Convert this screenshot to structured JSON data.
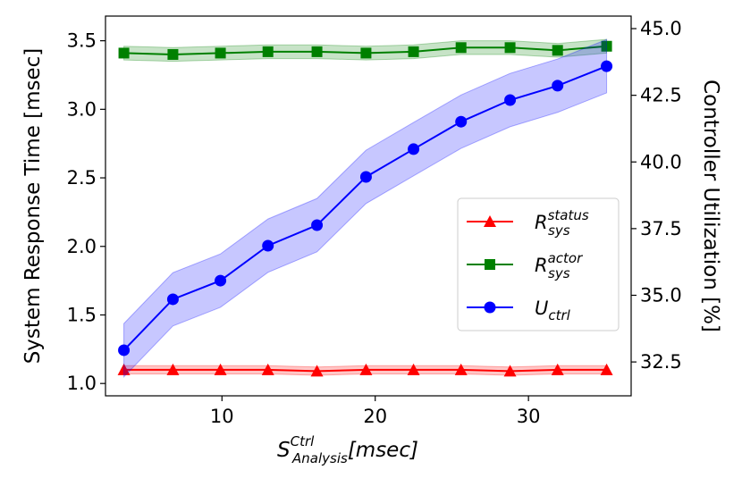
{
  "chart_data": {
    "type": "line",
    "y_label": "System Response Time [msec]",
    "y2_label": "Controller Utilization [%]",
    "x_label": {
      "symbol": "S",
      "subscript": "Analysis",
      "superscript": "Ctrl",
      "unit": "[msec]"
    },
    "x": [
      3.6,
      6.8,
      9.9,
      13.0,
      16.2,
      19.4,
      22.5,
      25.6,
      28.8,
      31.9,
      35.1
    ],
    "xlim": [
      2.4,
      36.7
    ],
    "xticks": [
      10,
      20,
      30
    ],
    "ylim": [
      0.91,
      3.68
    ],
    "yticks": [
      {
        "value": 1,
        "label": "1.0"
      },
      1.5,
      {
        "value": 2,
        "label": "2.0"
      },
      2.5,
      {
        "value": 3,
        "label": "3.0"
      },
      3.5
    ],
    "y2lim": [
      31.23,
      45.47
    ],
    "y2ticks": [
      32.5,
      {
        "value": 35,
        "label": "35.0"
      },
      37.5,
      {
        "value": 40,
        "label": "40.0"
      },
      42.5,
      {
        "value": 45,
        "label": "45.0"
      }
    ],
    "legend": "lower right",
    "series": [
      {
        "name": "R",
        "subscript": "sys",
        "superscript": "status",
        "color": "#ff0000",
        "marker": "triangle",
        "values": [
          1.1,
          1.1,
          1.1,
          1.1,
          1.09,
          1.1,
          1.1,
          1.1,
          1.09,
          1.1,
          1.1
        ],
        "errors": [
          0.03,
          0.03,
          0.03,
          0.03,
          0.03,
          0.03,
          0.03,
          0.03,
          0.03,
          0.03,
          0.03
        ]
      },
      {
        "name": "R",
        "subscript": "sys",
        "superscript": "actor",
        "color": "#008000",
        "marker": "square",
        "values": [
          3.41,
          3.4,
          3.41,
          3.42,
          3.42,
          3.41,
          3.42,
          3.45,
          3.45,
          3.43,
          3.46
        ],
        "errors": [
          0.05,
          0.05,
          0.05,
          0.05,
          0.05,
          0.05,
          0.05,
          0.05,
          0.05,
          0.05,
          0.05
        ]
      },
      {
        "name": "U",
        "subscript": "ctrl",
        "color": "#0000ff",
        "marker": "circle",
        "axis": "y2",
        "values": [
          32.94,
          34.85,
          35.55,
          36.86,
          37.63,
          39.44,
          40.48,
          41.51,
          42.32,
          42.86,
          43.59
        ],
        "errors": [
          1.0,
          1.0,
          1.0,
          1.0,
          1.0,
          1.0,
          1.0,
          1.0,
          1.0,
          1.0,
          1.0
        ]
      }
    ]
  }
}
